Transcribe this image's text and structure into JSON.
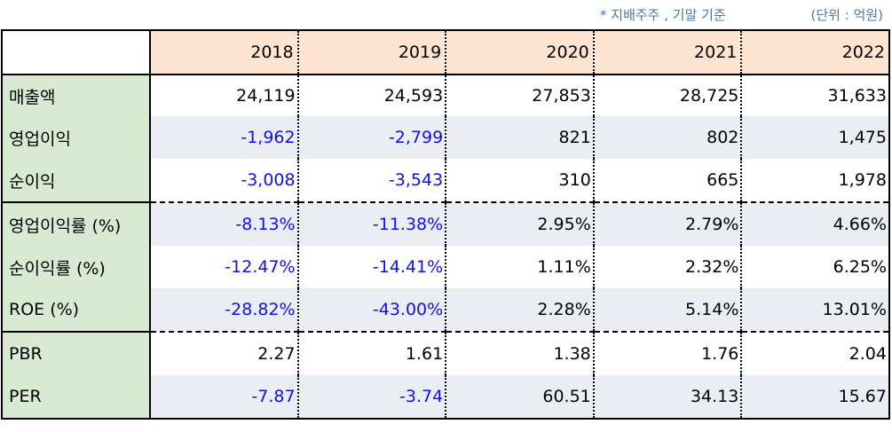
{
  "notes": {
    "basis": "* 지배주주 , 기말 기준",
    "unit": "(단위 : 억원)"
  },
  "colors": {
    "header_bg": "#fce4d0",
    "label_bg": "#d9ead3",
    "stripe_bg": "#eaeef3",
    "negative_text": "#1010e8"
  },
  "years": [
    "2018",
    "2019",
    "2020",
    "2021",
    "2022"
  ],
  "rows": [
    {
      "label": "매출액",
      "values": [
        "24,119",
        "24,593",
        "27,853",
        "28,725",
        "31,633"
      ],
      "neg": [
        false,
        false,
        false,
        false,
        false
      ]
    },
    {
      "label": "영업이익",
      "values": [
        "-1,962",
        "-2,799",
        "821",
        "802",
        "1,475"
      ],
      "neg": [
        true,
        true,
        false,
        false,
        false
      ]
    },
    {
      "label": "순이익",
      "values": [
        "-3,008",
        "-3,543",
        "310",
        "665",
        "1,978"
      ],
      "neg": [
        true,
        true,
        false,
        false,
        false
      ]
    },
    {
      "label": "영업이익률 (%)",
      "values": [
        "-8.13%",
        "-11.38%",
        "2.95%",
        "2.79%",
        "4.66%"
      ],
      "neg": [
        true,
        true,
        false,
        false,
        false
      ]
    },
    {
      "label": "순이익률 (%)",
      "values": [
        "-12.47%",
        "-14.41%",
        "1.11%",
        "2.32%",
        "6.25%"
      ],
      "neg": [
        true,
        true,
        false,
        false,
        false
      ]
    },
    {
      "label": "ROE (%)",
      "values": [
        "-28.82%",
        "-43.00%",
        "2.28%",
        "5.14%",
        "13.01%"
      ],
      "neg": [
        true,
        true,
        false,
        false,
        false
      ]
    },
    {
      "label": "PBR",
      "values": [
        "2.27",
        "1.61",
        "1.38",
        "1.76",
        "2.04"
      ],
      "neg": [
        false,
        false,
        false,
        false,
        false
      ]
    },
    {
      "label": "PER",
      "values": [
        "-7.87",
        "-3.74",
        "60.51",
        "34.13",
        "15.67"
      ],
      "neg": [
        true,
        true,
        false,
        false,
        false
      ]
    }
  ]
}
